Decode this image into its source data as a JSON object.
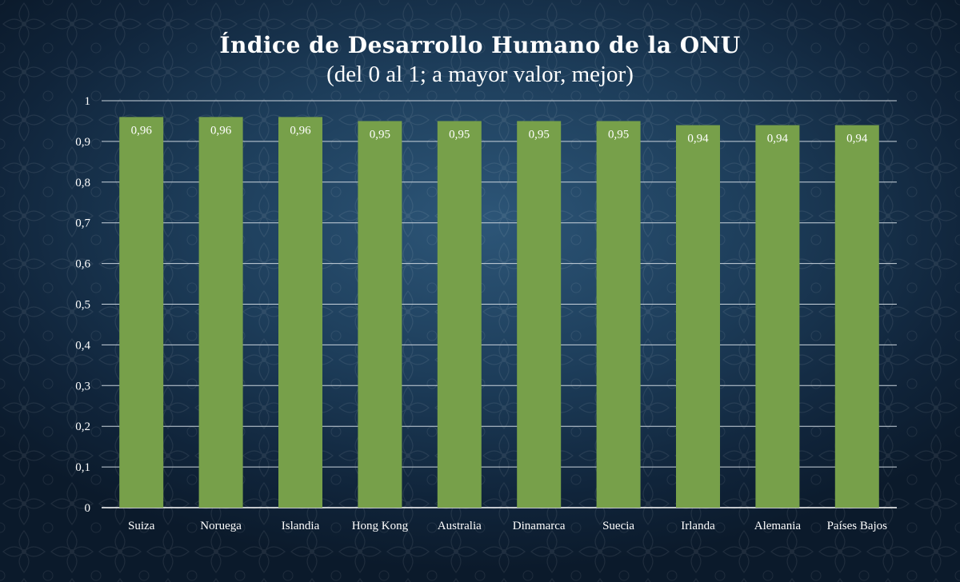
{
  "colors": {
    "bar": "#77a04a",
    "grid": "#c9d3dc",
    "text": "#ffffff"
  },
  "chart_data": {
    "type": "bar",
    "title": "Índice de Desarrollo Humano de la ONU",
    "subtitle": "(del 0 al 1; a mayor valor, mejor)",
    "categories": [
      "Suiza",
      "Noruega",
      "Islandia",
      "Hong Kong",
      "Australia",
      "Dinamarca",
      "Suecia",
      "Irlanda",
      "Alemania",
      "Países Bajos"
    ],
    "values": [
      0.96,
      0.96,
      0.96,
      0.95,
      0.95,
      0.95,
      0.95,
      0.94,
      0.94,
      0.94
    ],
    "data_labels": [
      "0,96",
      "0,96",
      "0,96",
      "0,95",
      "0,95",
      "0,95",
      "0,95",
      "0,94",
      "0,94",
      "0,94"
    ],
    "y_ticks": [
      0,
      0.1,
      0.2,
      0.3,
      0.4,
      0.5,
      0.6,
      0.7,
      0.8,
      0.9,
      1
    ],
    "y_tick_labels": [
      "0",
      "0,1",
      "0,2",
      "0,3",
      "0,4",
      "0,5",
      "0,6",
      "0,7",
      "0,8",
      "0,9",
      "1"
    ],
    "ylim": [
      0,
      1
    ],
    "grid": true,
    "legend": "none"
  }
}
